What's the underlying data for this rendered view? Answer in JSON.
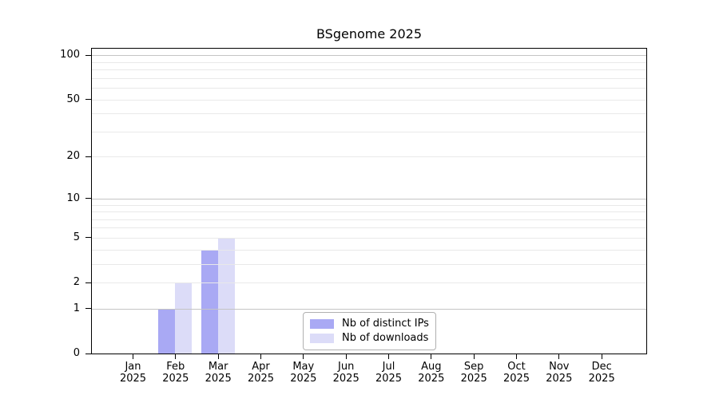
{
  "chart_data": {
    "type": "bar",
    "title": "BSgenome 2025",
    "year": "2025",
    "months": [
      "Jan",
      "Feb",
      "Mar",
      "Apr",
      "May",
      "Jun",
      "Jul",
      "Aug",
      "Sep",
      "Oct",
      "Nov",
      "Dec"
    ],
    "series": [
      {
        "name": "Nb of distinct IPs",
        "color": "#a9a9f4",
        "values": [
          0,
          1,
          4,
          0,
          0,
          0,
          0,
          0,
          0,
          0,
          0,
          0
        ]
      },
      {
        "name": "Nb of downloads",
        "color": "#dcdcf8",
        "values": [
          0,
          2,
          5,
          0,
          0,
          0,
          0,
          0,
          0,
          0,
          0,
          0
        ]
      }
    ],
    "y_axis": {
      "scale": "log1p",
      "tick_values": [
        0,
        1,
        2,
        5,
        10,
        20,
        50,
        100
      ],
      "gridlines_emphasis": [
        1,
        10,
        100
      ],
      "gridlines_light": [
        2,
        3,
        4,
        5,
        6,
        7,
        8,
        9,
        20,
        30,
        40,
        50,
        60,
        70,
        80,
        90
      ],
      "range": [
        0,
        115
      ]
    },
    "xlabel": "",
    "ylabel": "",
    "grid": "on",
    "legend": {
      "position": "bottom-center"
    }
  },
  "colors": {
    "grid_emphasis": "#c4c4c4",
    "grid_light": "#e9e9e9",
    "axis": "#000000"
  }
}
